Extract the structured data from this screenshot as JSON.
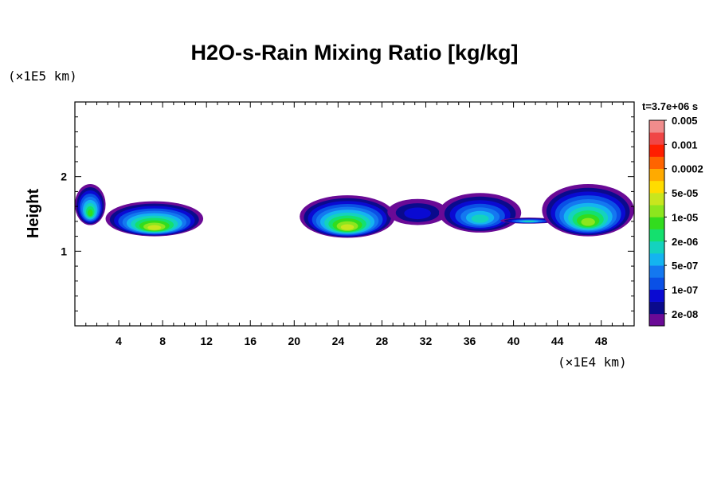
{
  "chart_data": {
    "type": "heatmap",
    "title": "H2O-s-Rain Mixing Ratio [kg/kg]",
    "ylabel": "Height",
    "xlabel": "",
    "x_scale_label": "(×1E4 km)",
    "y_scale_label": "(×1E5 km)",
    "xlim": [
      0,
      51
    ],
    "ylim": [
      0,
      3
    ],
    "x_ticks": [
      4,
      8,
      12,
      16,
      20,
      24,
      28,
      32,
      36,
      40,
      44,
      48
    ],
    "y_ticks": [
      1,
      2
    ],
    "time_label": "t=3.7e+06 s",
    "legend": {
      "levels": [
        "2e-08",
        "1e-07",
        "5e-07",
        "2e-06",
        "1e-05",
        "5e-05",
        "0.0002",
        "0.001",
        "0.005"
      ],
      "colors": [
        "#6a0a96",
        "#0a0a8c",
        "#0a0ad2",
        "#0a50e6",
        "#1478f0",
        "#14b4f0",
        "#14d2be",
        "#14e06e",
        "#32dc1e",
        "#8ce61e",
        "#c8e61e",
        "#ffdc00",
        "#ffaa00",
        "#ff6400",
        "#ff1e00",
        "#f04646",
        "#f08c8c"
      ]
    },
    "cells": [
      {
        "x": [
          0,
          2.8
        ],
        "y": [
          1.35,
          1.9
        ],
        "peak": 8
      },
      {
        "x": [
          2.8,
          11.7
        ],
        "y": [
          1.2,
          1.67
        ],
        "peak": 10
      },
      {
        "x": [
          20.5,
          29.2
        ],
        "y": [
          1.18,
          1.75
        ],
        "peak": 10
      },
      {
        "x": [
          28.5,
          34.0
        ],
        "y": [
          1.35,
          1.7
        ],
        "peak": 2
      },
      {
        "x": [
          33.2,
          40.7
        ],
        "y": [
          1.25,
          1.78
        ],
        "peak": 6
      },
      {
        "x": [
          38.8,
          44.0
        ],
        "y": [
          1.37,
          1.45
        ],
        "peak": 6
      },
      {
        "x": [
          42.6,
          51.0
        ],
        "y": [
          1.2,
          1.9
        ],
        "peak": 9
      }
    ]
  }
}
